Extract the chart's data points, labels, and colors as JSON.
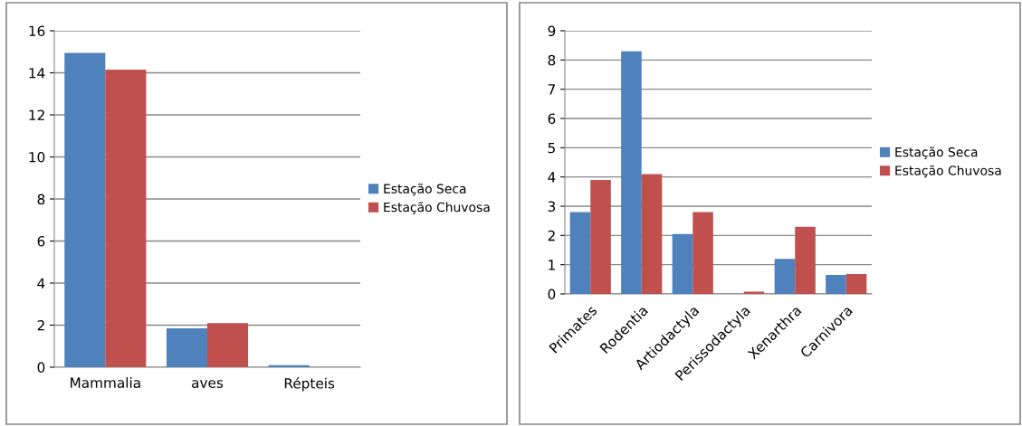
{
  "chart_data": [
    {
      "type": "bar",
      "categories": [
        "Mammalia",
        "aves",
        "Répteis"
      ],
      "ylim": [
        0,
        16
      ],
      "yticks": [
        0,
        2,
        4,
        6,
        8,
        10,
        12,
        14,
        16
      ],
      "grid": "y",
      "legend": "right",
      "series": [
        {
          "name": "Estação Seca",
          "color": "#4f81bd",
          "values": [
            14.95,
            1.85,
            0.1
          ]
        },
        {
          "name": "Estação Chuvosa",
          "color": "#c0504d",
          "values": [
            14.15,
            2.1,
            0
          ]
        }
      ]
    },
    {
      "type": "bar",
      "categories": [
        "Primates",
        "Rodentia",
        "Artiodactyla",
        "Perissodactyla",
        "Xenarthra",
        "Carnivora"
      ],
      "ylim": [
        0,
        9
      ],
      "yticks": [
        0,
        1,
        2,
        3,
        4,
        5,
        6,
        7,
        8,
        9
      ],
      "grid": "y",
      "legend": "right",
      "series": [
        {
          "name": "Estação Seca",
          "color": "#4f81bd",
          "values": [
            2.8,
            8.3,
            2.05,
            0,
            1.2,
            0.65
          ]
        },
        {
          "name": "Estação Chuvosa",
          "color": "#c0504d",
          "values": [
            3.9,
            4.1,
            2.8,
            0.08,
            2.3,
            0.68
          ]
        }
      ]
    }
  ]
}
